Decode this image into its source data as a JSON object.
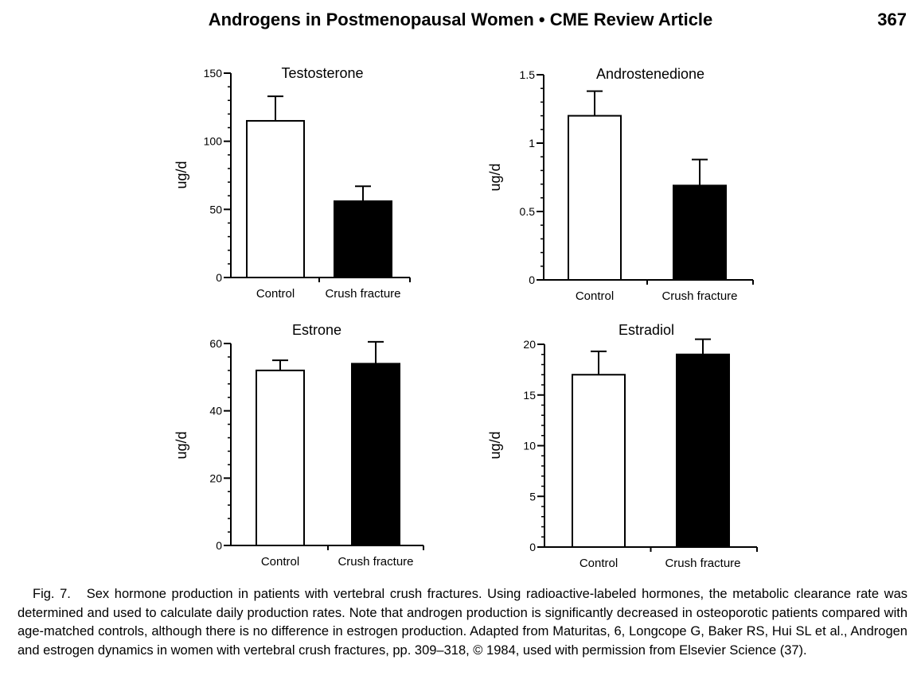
{
  "header": {
    "title": "Androgens in Postmenopausal Women • CME Review Article",
    "page_number": "367"
  },
  "chart_data": [
    {
      "type": "bar",
      "title": "Testosterone",
      "ylabel": "ug/d",
      "xlabel": "",
      "categories": [
        "Control",
        "Crush fracture"
      ],
      "values": [
        115,
        56
      ],
      "errors": [
        18,
        11
      ],
      "bar_colors": [
        "#ffffff",
        "#000000"
      ],
      "ylim": [
        0,
        150
      ],
      "yticks": [
        0,
        50,
        100,
        150
      ],
      "ytick_labels": [
        "0",
        "50",
        "100",
        "150"
      ],
      "minor_step": 10
    },
    {
      "type": "bar",
      "title": "Androstenedione",
      "ylabel": "ug/d",
      "xlabel": "",
      "categories": [
        "Control",
        "Crush fracture"
      ],
      "values": [
        1.2,
        0.69
      ],
      "errors": [
        0.18,
        0.19
      ],
      "bar_colors": [
        "#ffffff",
        "#000000"
      ],
      "ylim": [
        0,
        1.5
      ],
      "yticks": [
        0,
        0.5,
        1,
        1.5
      ],
      "ytick_labels": [
        "0",
        "0.5",
        "1",
        "1.5"
      ],
      "minor_step": 0.1
    },
    {
      "type": "bar",
      "title": "Estrone",
      "ylabel": "ug/d",
      "xlabel": "",
      "categories": [
        "Control",
        "Crush fracture"
      ],
      "values": [
        52,
        54
      ],
      "errors": [
        3,
        6.5
      ],
      "bar_colors": [
        "#ffffff",
        "#000000"
      ],
      "ylim": [
        0,
        60
      ],
      "yticks": [
        0,
        20,
        40,
        60
      ],
      "ytick_labels": [
        "0",
        "20",
        "40",
        "60"
      ],
      "minor_step": 4
    },
    {
      "type": "bar",
      "title": "Estradiol",
      "ylabel": "ug/d",
      "xlabel": "",
      "categories": [
        "Control",
        "Crush fracture"
      ],
      "values": [
        17,
        19
      ],
      "errors": [
        2.3,
        1.5
      ],
      "bar_colors": [
        "#ffffff",
        "#000000"
      ],
      "ylim": [
        0,
        20
      ],
      "yticks": [
        0,
        5,
        10,
        15,
        20
      ],
      "ytick_labels": [
        "0",
        "5",
        "10",
        "15",
        "20"
      ],
      "minor_step": 1
    }
  ],
  "caption": {
    "lead": "Fig. 7.",
    "text": "Sex hormone production in patients with vertebral crush fractures. Using radioactive-labeled hormones, the metabolic clearance rate was determined and used to calculate daily production rates. Note that androgen production is significantly decreased in osteoporotic patients compared with age-matched controls, although there is no difference in estrogen production. Adapted from Maturitas, 6, Longcope G, Baker RS, Hui SL et al., Androgen and estrogen dynamics in women with vertebral crush fractures, pp. 309–318, © 1984, used with permission from Elsevier Science (37)."
  }
}
